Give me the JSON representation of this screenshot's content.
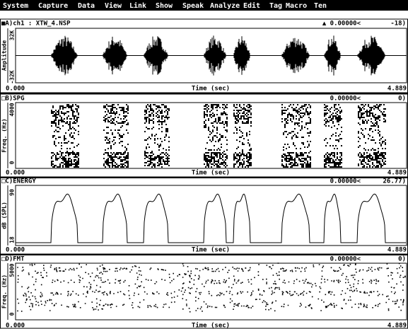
{
  "menu": [
    "System",
    "Capture",
    "Data",
    "View",
    "Link",
    "Show",
    "Speak",
    "Analyze",
    "Edit",
    "Tag",
    "Macro",
    "Ten"
  ],
  "panels": [
    {
      "label": "■A)ch1 : XTW_4.NSP",
      "cursor": "▲ 0.00000<",
      "reading": "-18)",
      "y_label": "Amplitude",
      "y_top": "32K",
      "y_bottom": "-32K",
      "x_start": "0.000",
      "x_label": "Time (sec)",
      "x_end": "4.889"
    },
    {
      "label": "□B)SPG",
      "cursor": "0.00000<",
      "reading": "0)",
      "y_label": "Freq. (Hz)",
      "y_top": "4000",
      "y_bottom": "0",
      "x_start": "0.000",
      "x_label": "Time (sec)",
      "x_end": "4.889"
    },
    {
      "label": "□C)ENERGY",
      "cursor": "0.00000<",
      "reading": "26.77)",
      "y_label": "dB (SPL)",
      "y_top": "90",
      "y_bottom": "18",
      "x_start": "0.000",
      "x_label": "Time (sec)",
      "x_end": "4.889"
    },
    {
      "label": "□D)FMT",
      "cursor": "0.00000<",
      "reading": "0)",
      "y_label": "Freq. (Hz)",
      "y_top": "5000",
      "y_bottom": "0",
      "x_start": "0.000",
      "x_label": "Time (sec)",
      "x_end": "4.889"
    }
  ]
}
